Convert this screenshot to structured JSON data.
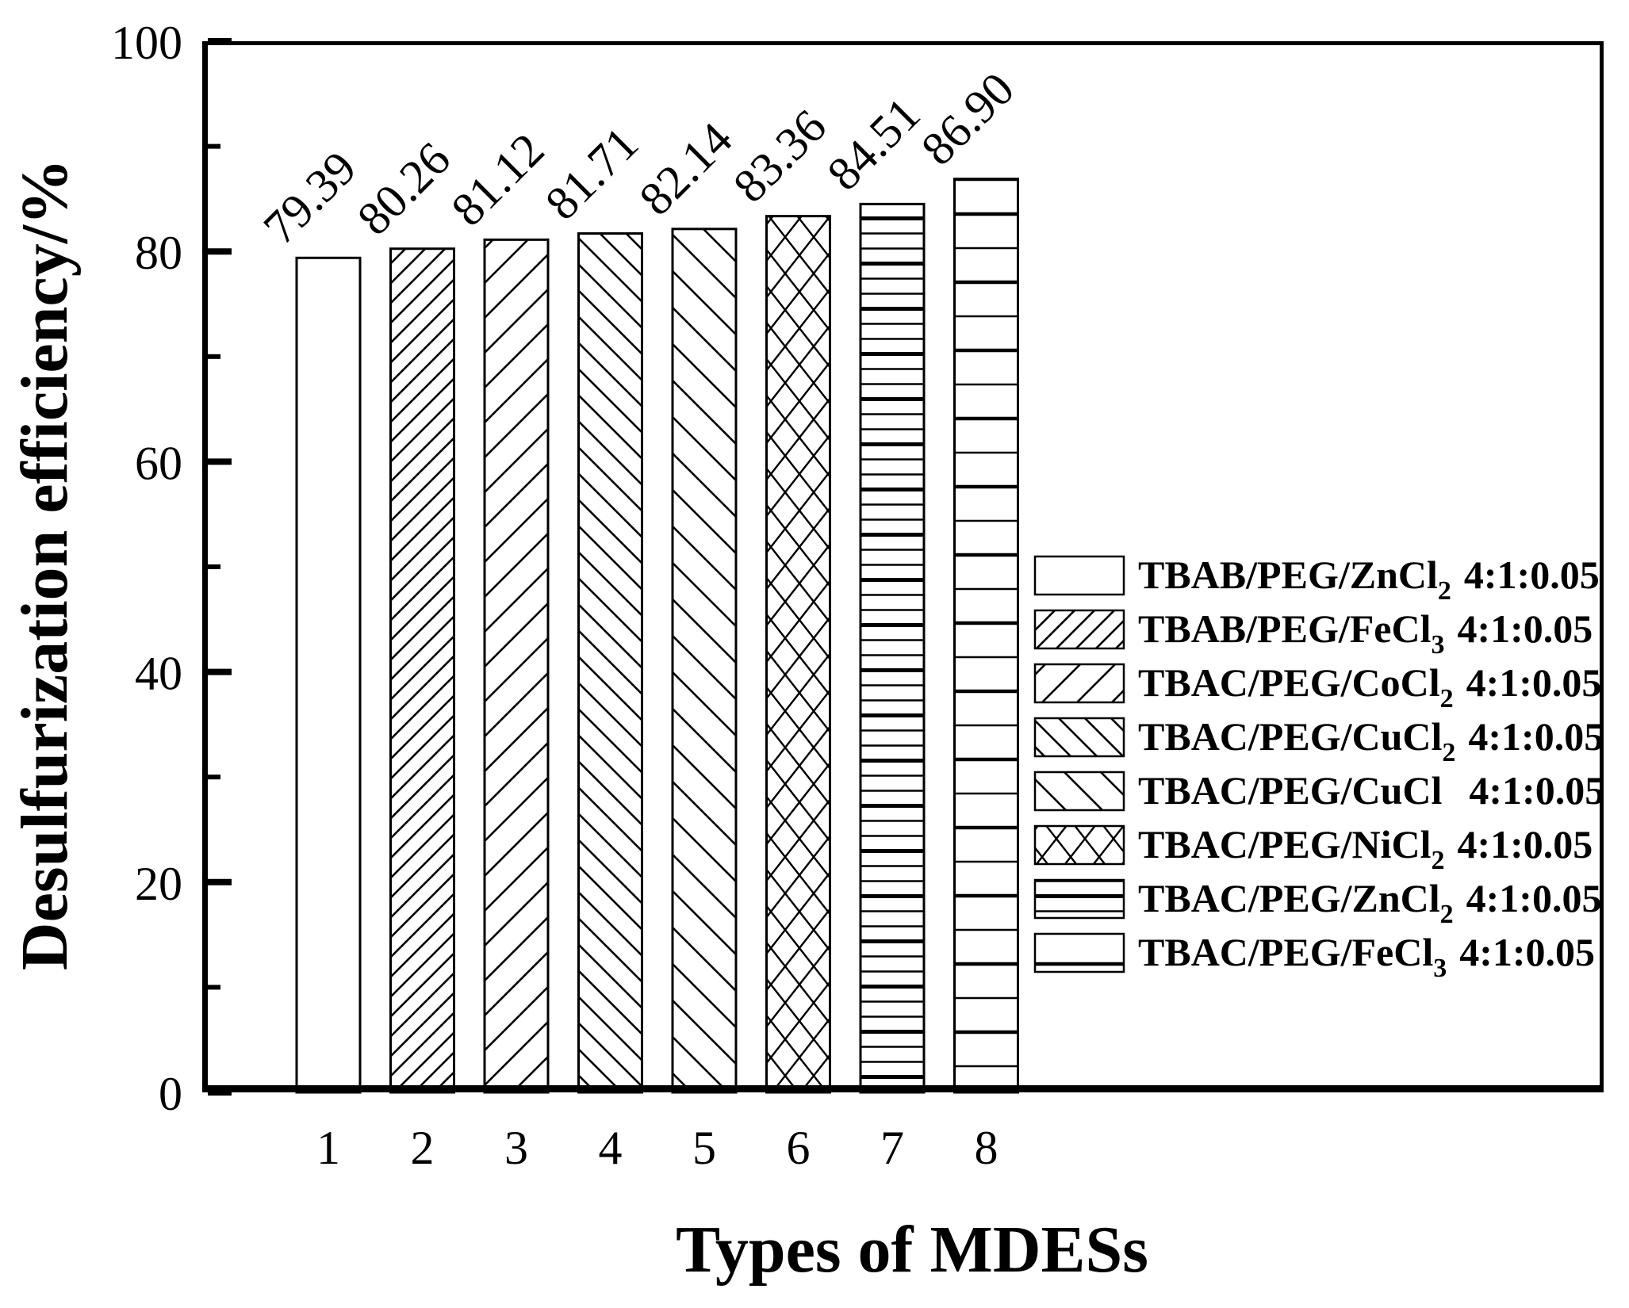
{
  "figure": {
    "background_color": "#ffffff",
    "ink_color": "#000000"
  },
  "chart_data": {
    "type": "bar",
    "title": "",
    "xlabel": "Types of MDESs",
    "ylabel": "Desulfurization efficiency/%",
    "categories": [
      "1",
      "2",
      "3",
      "4",
      "5",
      "6",
      "7",
      "8"
    ],
    "values": [
      79.39,
      80.26,
      81.12,
      81.71,
      82.14,
      83.36,
      84.51,
      86.9
    ],
    "value_labels": [
      "79.39",
      "80.26",
      "81.12",
      "81.71",
      "82.14",
      "83.36",
      "84.51",
      "86.90"
    ],
    "value_label_rotation_deg": 45,
    "ylim": [
      0,
      100
    ],
    "yticks_major": [
      "0",
      "20",
      "40",
      "60",
      "80",
      "100"
    ],
    "yticks_major_values": [
      0,
      20,
      40,
      60,
      80,
      100
    ],
    "yticks_minor_values": [
      10,
      30,
      50,
      70,
      90
    ],
    "grid": false,
    "bar_fill": "#ffffff",
    "bar_edge": "#000000",
    "bar_patterns": [
      "none",
      "diagonal-forward-dense",
      "diagonal-forward-sparse",
      "diagonal-back-dense",
      "diagonal-back-sparse",
      "diamond-crosshatch",
      "horizontal-dense",
      "horizontal-sparse"
    ],
    "legend": {
      "position": "inside-right",
      "entries": [
        {
          "name": "TBAB/PEG/ZnCl",
          "sub": "2",
          "ratio": "4:1:0.05"
        },
        {
          "name": "TBAB/PEG/FeCl",
          "sub": "3",
          "ratio": "4:1:0.05"
        },
        {
          "name": "TBAC/PEG/CoCl",
          "sub": "2",
          "ratio": "4:1:0.05"
        },
        {
          "name": "TBAC/PEG/CuCl",
          "sub": "2",
          "ratio": "4:1:0.05"
        },
        {
          "name": "TBAC/PEG/CuCl",
          "sub": "",
          "ratio": "4:1:0.05"
        },
        {
          "name": "TBAC/PEG/NiCl",
          "sub": "2",
          "ratio": "4:1:0.05"
        },
        {
          "name": "TBAC/PEG/ZnCl",
          "sub": "2",
          "ratio": "4:1:0.05"
        },
        {
          "name": "TBAC/PEG/FeCl",
          "sub": "3",
          "ratio": "4:1:0.05"
        }
      ]
    }
  }
}
